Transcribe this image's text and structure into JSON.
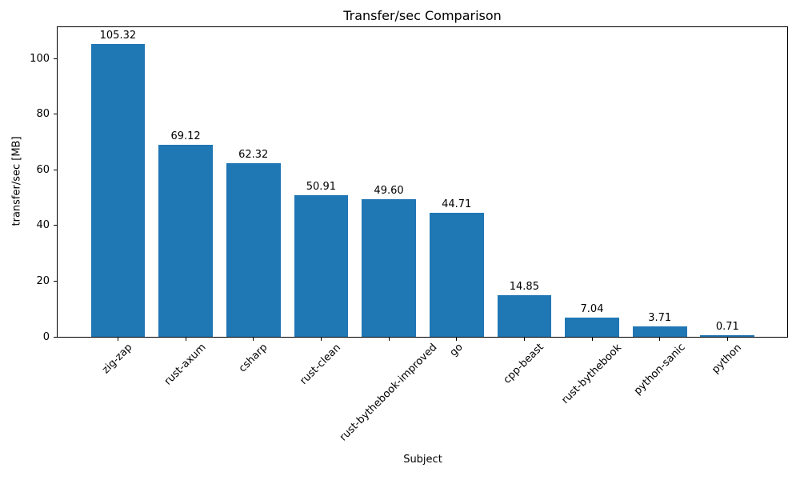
{
  "chart_data": {
    "type": "bar",
    "title": "Transfer/sec Comparison",
    "xlabel": "Subject",
    "ylabel": "transfer/sec [MB]",
    "categories": [
      "zig-zap",
      "rust-axum",
      "csharp",
      "rust-clean",
      "rust-bythebook-improved",
      "go",
      "cpp-beast",
      "rust-bythebook",
      "python-sanic",
      "python"
    ],
    "values": [
      105.32,
      69.12,
      62.32,
      50.91,
      49.6,
      44.71,
      14.85,
      7.04,
      3.71,
      0.71
    ],
    "value_labels": [
      "105.32",
      "69.12",
      "62.32",
      "50.91",
      "49.60",
      "44.71",
      "14.85",
      "7.04",
      "3.71",
      "0.71"
    ],
    "yticks": [
      0,
      20,
      40,
      60,
      80,
      100
    ],
    "ylim": [
      0,
      111.6
    ],
    "bar_color": "#1f77b4",
    "text_color": "#000000",
    "grid": false,
    "legend": "none"
  }
}
